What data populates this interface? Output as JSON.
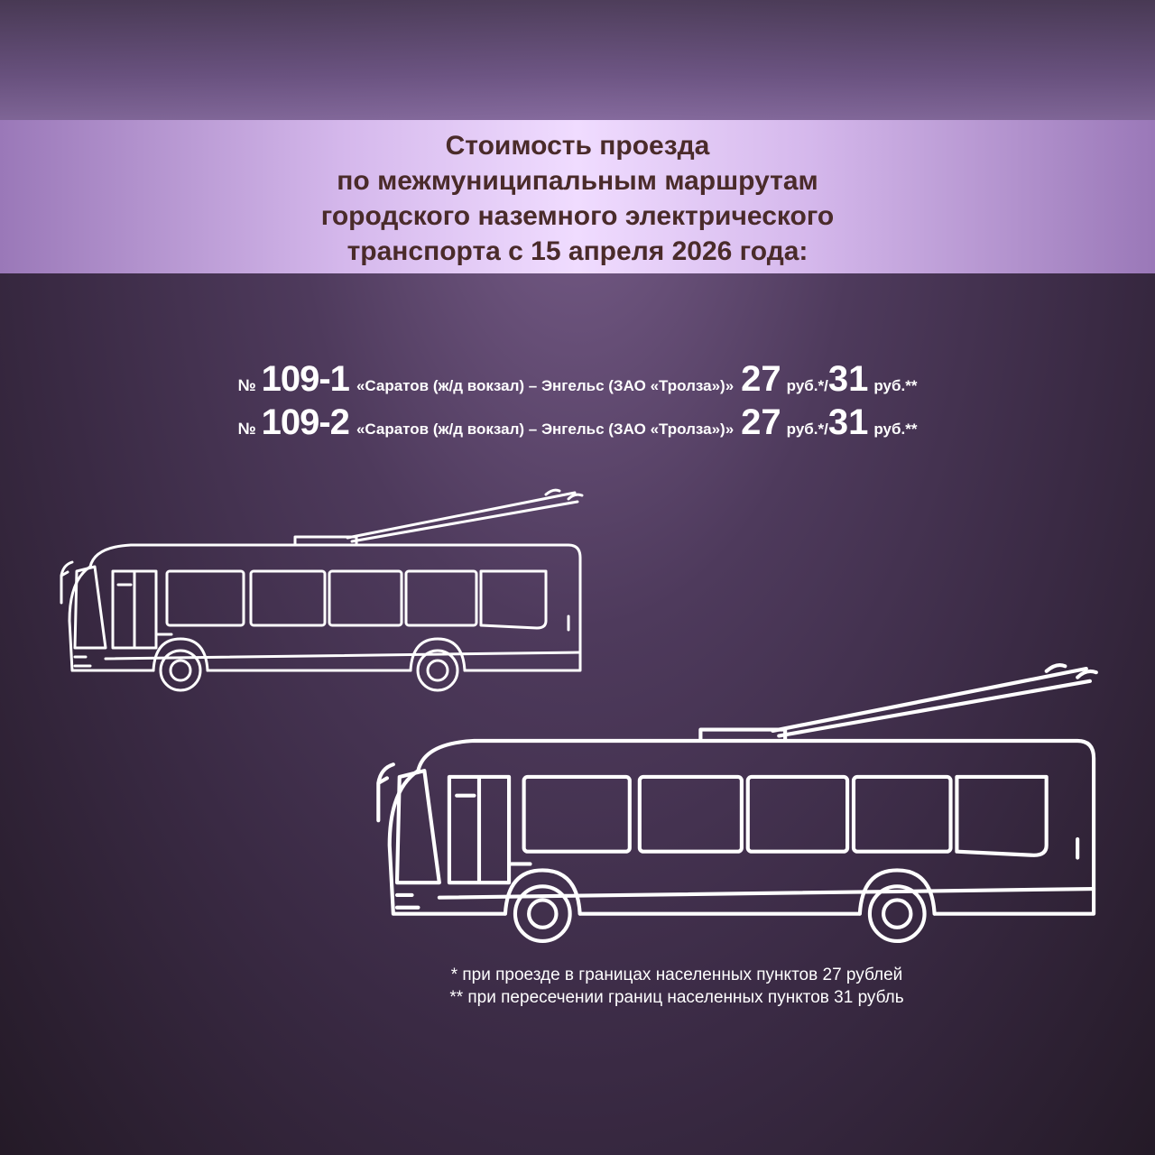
{
  "title_lines": [
    "Стоимость проезда",
    "по межмуниципальным маршрутам",
    "городского наземного электрического",
    "транспорта с 15 апреля 2026 года:"
  ],
  "routes": [
    {
      "no_sign": "№",
      "number": "109-1",
      "name": "«Саратов (ж/д вокзал) – Энгельс (ЗАО «Тролза»)»",
      "price1": "27",
      "unit1": "руб.*/",
      "price2": "31",
      "unit2": "руб.**"
    },
    {
      "no_sign": "№",
      "number": "109-2",
      "name": "«Саратов (ж/д вокзал) – Энгельс (ЗАО «Тролза»)»",
      "price1": "27",
      "unit1": "руб.*/",
      "price2": "31",
      "unit2": "руб.**"
    }
  ],
  "notes": [
    "* при проезде в границах населенных пунктов 27 рублей",
    "** при пересечении границ населенных пунктов 31 рубль"
  ],
  "colors": {
    "title": "#4a2b2a",
    "banner": "#e6cdf7",
    "background": "#3a2a44",
    "bus_outline": "#ffffff"
  },
  "icons": [
    "trolleybus-icon",
    "trolleybus-icon"
  ]
}
